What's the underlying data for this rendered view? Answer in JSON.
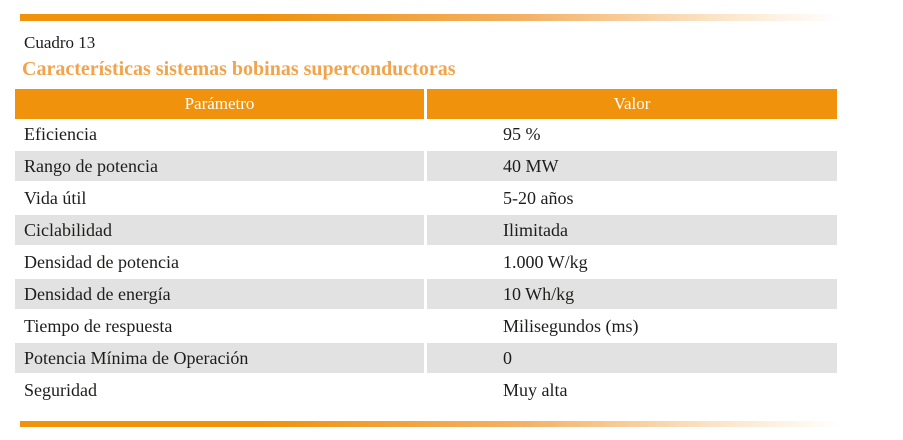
{
  "colors": {
    "accent_orange": "#f0920b",
    "title_orange": "#f2a44c",
    "stripe_gray": "#e2e2e2",
    "header_text": "#ffffff",
    "body_text": "#1d1d1b"
  },
  "caption": {
    "label": "Cuadro 13"
  },
  "title": "Características sistemas bobinas superconductoras",
  "table": {
    "columns": [
      "Parámetro",
      "Valor"
    ],
    "rows": [
      {
        "parametro": "Eficiencia",
        "valor": "95 %"
      },
      {
        "parametro": "Rango de potencia",
        "valor": "40 MW"
      },
      {
        "parametro": "Vida útil",
        "valor": "5-20 años"
      },
      {
        "parametro": "Ciclabilidad",
        "valor": "Ilimitada"
      },
      {
        "parametro": "Densidad de potencia",
        "valor": "1.000 W/kg"
      },
      {
        "parametro": "Densidad de energía",
        "valor": "10 Wh/kg"
      },
      {
        "parametro": "Tiempo de respuesta",
        "valor": "Milisegundos (ms)"
      },
      {
        "parametro": "Potencia Mínima de Operación",
        "valor": "0"
      },
      {
        "parametro": "Seguridad",
        "valor": "Muy alta"
      }
    ]
  }
}
